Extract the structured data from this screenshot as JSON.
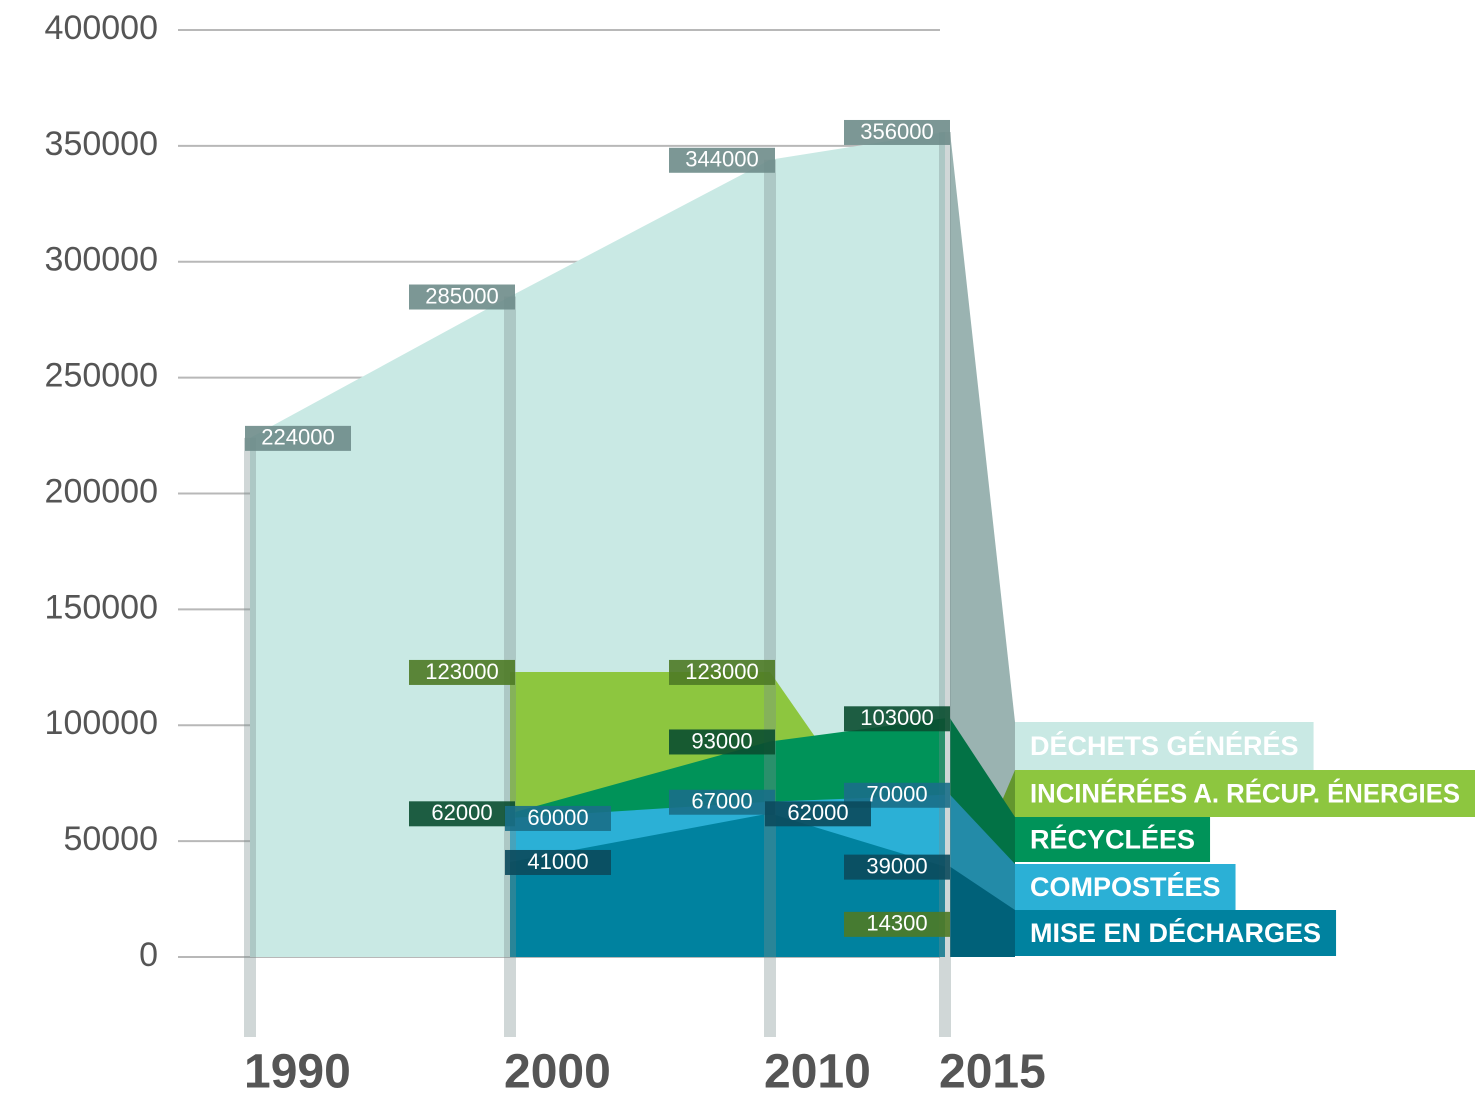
{
  "chart_data": {
    "type": "area",
    "categories": [
      "1990",
      "2000",
      "2010",
      "2015"
    ],
    "series": [
      {
        "name": "DÉCHETS GÉNÉRÉS",
        "color": "#c9e9e4",
        "values": [
          224000,
          285000,
          344000,
          356000
        ]
      },
      {
        "name": "INCINÉRÉES A. RÉCUP. ÉNERGIES",
        "color": "#8dc63f",
        "values": [
          null,
          123000,
          123000,
          14300
        ]
      },
      {
        "name": "RÉCYCLÉES",
        "color": "#009359",
        "values": [
          null,
          62000,
          93000,
          103000
        ]
      },
      {
        "name": "COMPOSTÉES",
        "color": "#2bb0d6",
        "values": [
          null,
          60000,
          67000,
          70000
        ]
      },
      {
        "name": "MISE EN DÉCHARGES",
        "color": "#00829f",
        "values": [
          null,
          41000,
          62000,
          39000
        ]
      }
    ],
    "ylim": [
      0,
      400000
    ],
    "yticks": [
      0,
      50000,
      100000,
      150000,
      200000,
      250000,
      300000,
      350000,
      400000
    ],
    "grid": true,
    "legend": "right"
  }
}
